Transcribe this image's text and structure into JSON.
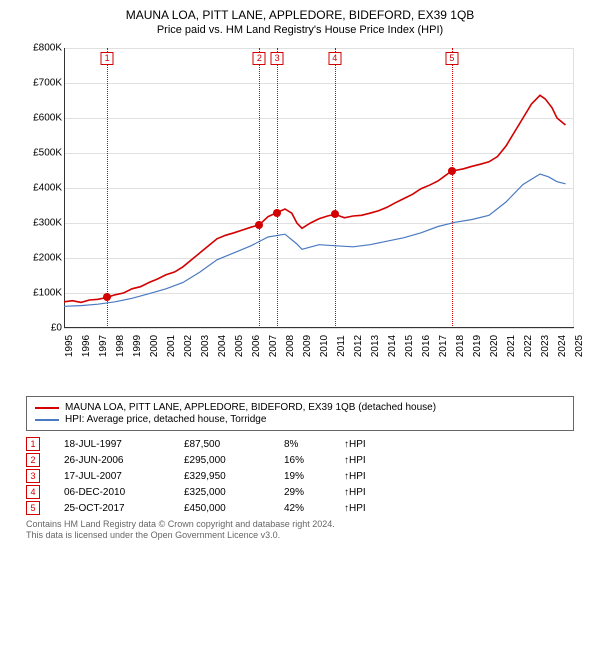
{
  "title": "MAUNA LOA, PITT LANE, APPLEDORE, BIDEFORD, EX39 1QB",
  "subtitle": "Price paid vs. HM Land Registry's House Price Index (HPI)",
  "colors": {
    "series_property": "#d20000",
    "series_hpi": "#4a7ac0",
    "marker_line": "#d20000",
    "marker_fill": "#d20000",
    "grid": "#e0e0e0",
    "text": "#222222"
  },
  "chart": {
    "type": "line",
    "yaxis": {
      "min": 0,
      "max": 800000,
      "step": 100000,
      "prefix": "£",
      "suffix": "K",
      "divisor": 1000
    },
    "xaxis": {
      "min": 1995,
      "max": 2025,
      "step": 1
    },
    "series": [
      {
        "id": "property",
        "color": "#d20000",
        "width": 1.6,
        "points": [
          [
            1995,
            75000
          ],
          [
            1995.5,
            78000
          ],
          [
            1996,
            73000
          ],
          [
            1996.5,
            80000
          ],
          [
            1997,
            82000
          ],
          [
            1997.54,
            87500
          ],
          [
            1998,
            95000
          ],
          [
            1998.5,
            100000
          ],
          [
            1999,
            112000
          ],
          [
            1999.5,
            118000
          ],
          [
            2000,
            130000
          ],
          [
            2000.5,
            140000
          ],
          [
            2001,
            152000
          ],
          [
            2001.5,
            160000
          ],
          [
            2002,
            175000
          ],
          [
            2002.5,
            195000
          ],
          [
            2003,
            215000
          ],
          [
            2003.5,
            235000
          ],
          [
            2004,
            255000
          ],
          [
            2004.5,
            265000
          ],
          [
            2005,
            272000
          ],
          [
            2005.5,
            280000
          ],
          [
            2006,
            288000
          ],
          [
            2006.49,
            295000
          ],
          [
            2007,
            318000
          ],
          [
            2007.54,
            329950
          ],
          [
            2008,
            340000
          ],
          [
            2008.4,
            328000
          ],
          [
            2008.7,
            300000
          ],
          [
            2009,
            285000
          ],
          [
            2009.5,
            300000
          ],
          [
            2010,
            312000
          ],
          [
            2010.5,
            320000
          ],
          [
            2010.93,
            325000
          ],
          [
            2011.5,
            315000
          ],
          [
            2012,
            320000
          ],
          [
            2012.5,
            322000
          ],
          [
            2013,
            328000
          ],
          [
            2013.5,
            335000
          ],
          [
            2014,
            345000
          ],
          [
            2014.5,
            358000
          ],
          [
            2015,
            370000
          ],
          [
            2015.5,
            382000
          ],
          [
            2016,
            398000
          ],
          [
            2016.5,
            408000
          ],
          [
            2017,
            420000
          ],
          [
            2017.5,
            438000
          ],
          [
            2017.82,
            450000
          ],
          [
            2018,
            450000
          ],
          [
            2018.5,
            455000
          ],
          [
            2019,
            462000
          ],
          [
            2019.5,
            468000
          ],
          [
            2020,
            475000
          ],
          [
            2020.5,
            490000
          ],
          [
            2021,
            520000
          ],
          [
            2021.5,
            560000
          ],
          [
            2022,
            600000
          ],
          [
            2022.5,
            640000
          ],
          [
            2023,
            665000
          ],
          [
            2023.3,
            655000
          ],
          [
            2023.7,
            630000
          ],
          [
            2024,
            600000
          ],
          [
            2024.5,
            580000
          ]
        ]
      },
      {
        "id": "hpi",
        "color": "#4a7ac0",
        "width": 1.2,
        "points": [
          [
            1995,
            62000
          ],
          [
            1996,
            64000
          ],
          [
            1997,
            68000
          ],
          [
            1998,
            75000
          ],
          [
            1999,
            85000
          ],
          [
            2000,
            98000
          ],
          [
            2001,
            112000
          ],
          [
            2002,
            130000
          ],
          [
            2003,
            160000
          ],
          [
            2004,
            195000
          ],
          [
            2005,
            215000
          ],
          [
            2006,
            235000
          ],
          [
            2007,
            260000
          ],
          [
            2008,
            268000
          ],
          [
            2008.7,
            240000
          ],
          [
            2009,
            225000
          ],
          [
            2010,
            238000
          ],
          [
            2011,
            235000
          ],
          [
            2012,
            232000
          ],
          [
            2013,
            238000
          ],
          [
            2014,
            248000
          ],
          [
            2015,
            258000
          ],
          [
            2016,
            272000
          ],
          [
            2017,
            290000
          ],
          [
            2018,
            302000
          ],
          [
            2019,
            310000
          ],
          [
            2020,
            322000
          ],
          [
            2021,
            360000
          ],
          [
            2022,
            410000
          ],
          [
            2023,
            440000
          ],
          [
            2023.5,
            432000
          ],
          [
            2024,
            418000
          ],
          [
            2024.5,
            412000
          ]
        ]
      }
    ],
    "sale_markers": [
      {
        "n": 1,
        "year": 1997.54,
        "price": 87500
      },
      {
        "n": 2,
        "year": 2006.49,
        "price": 295000
      },
      {
        "n": 3,
        "year": 2007.54,
        "price": 329950
      },
      {
        "n": 4,
        "year": 2010.93,
        "price": 325000
      },
      {
        "n": 5,
        "year": 2017.82,
        "price": 450000
      }
    ]
  },
  "legend": {
    "items": [
      "MAUNA LOA, PITT LANE, APPLEDORE, BIDEFORD, EX39 1QB (detached house)",
      "HPI: Average price, detached house, Torridge"
    ]
  },
  "sales": [
    {
      "n": "1",
      "date": "18-JUL-1997",
      "price": "£87,500",
      "diff": "8%",
      "arrow": "↑",
      "suffix": "HPI"
    },
    {
      "n": "2",
      "date": "26-JUN-2006",
      "price": "£295,000",
      "diff": "16%",
      "arrow": "↑",
      "suffix": "HPI"
    },
    {
      "n": "3",
      "date": "17-JUL-2007",
      "price": "£329,950",
      "diff": "19%",
      "arrow": "↑",
      "suffix": "HPI"
    },
    {
      "n": "4",
      "date": "06-DEC-2010",
      "price": "£325,000",
      "diff": "29%",
      "arrow": "↑",
      "suffix": "HPI"
    },
    {
      "n": "5",
      "date": "25-OCT-2017",
      "price": "£450,000",
      "diff": "42%",
      "arrow": "↑",
      "suffix": "HPI"
    }
  ],
  "footer": {
    "line1": "Contains HM Land Registry data © Crown copyright and database right 2024.",
    "line2": "This data is licensed under the Open Government Licence v3.0."
  }
}
